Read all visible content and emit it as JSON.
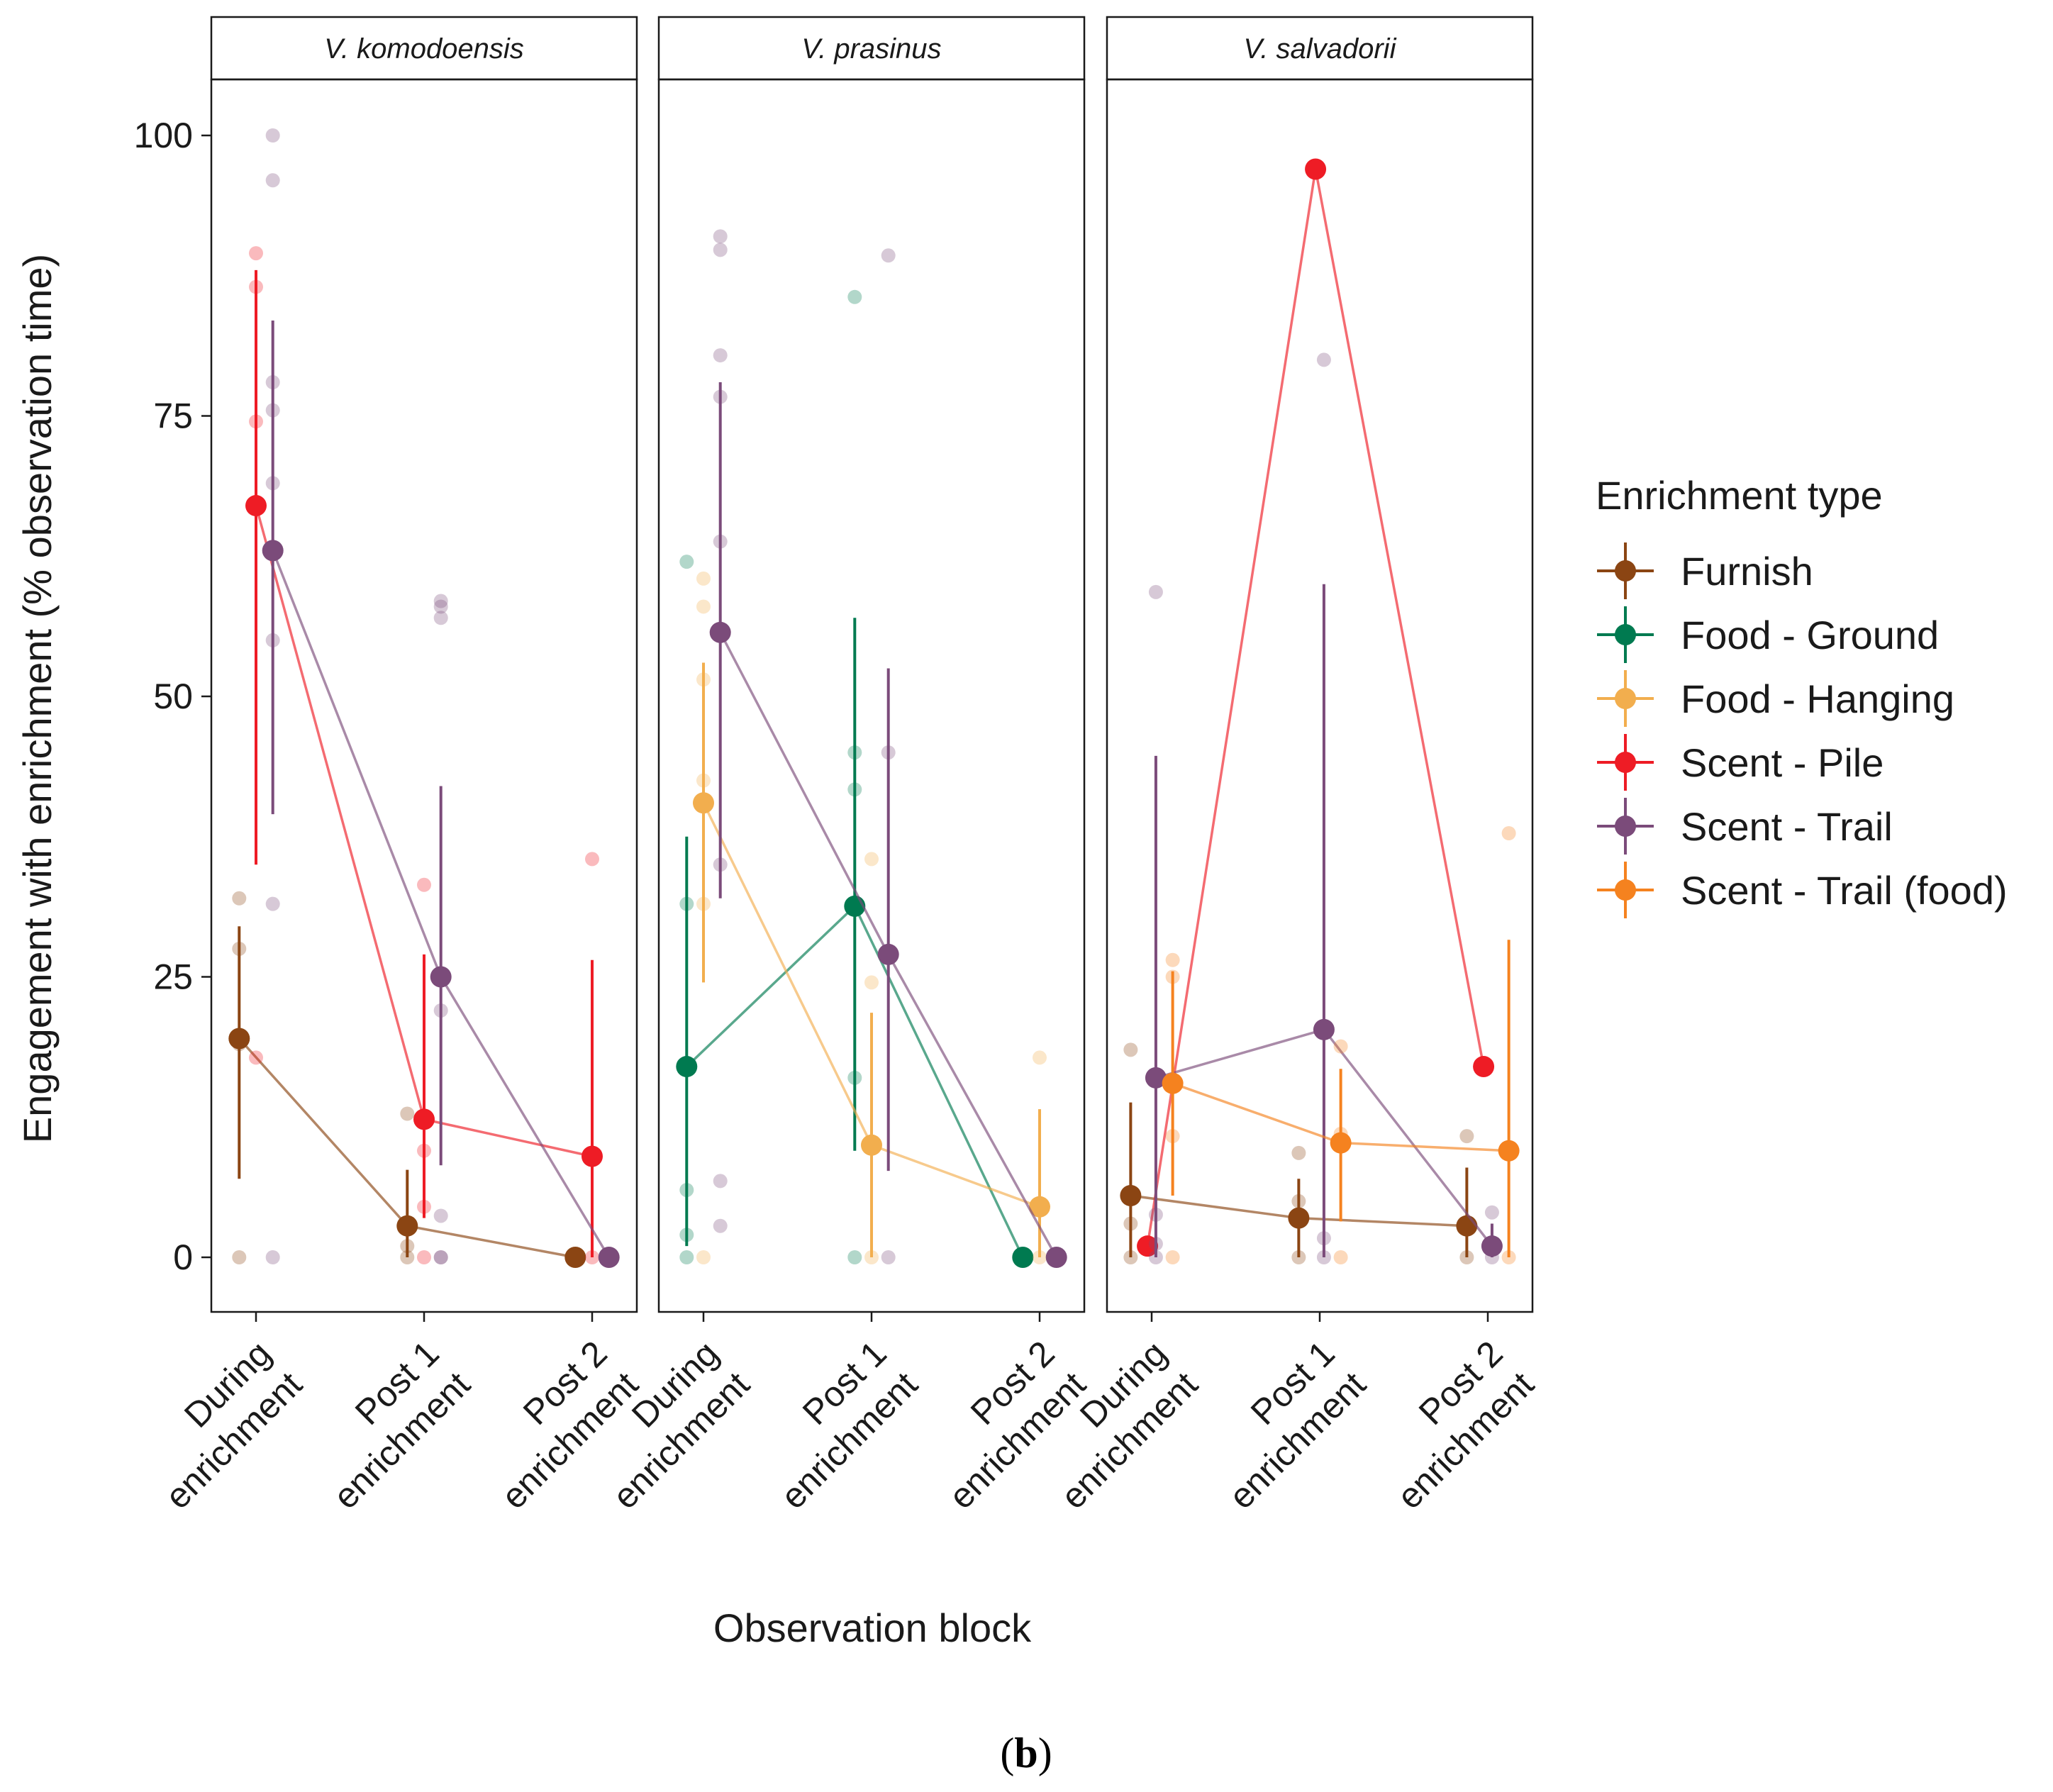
{
  "chart_data": {
    "type": "scatter",
    "ylabel": "Engagement with enrichment (% observation time)",
    "xlabel": "Observation block",
    "ylim": [
      -5,
      105
    ],
    "yticks": [
      0,
      25,
      50,
      75,
      100
    ],
    "categories": [
      [
        "During",
        "enrichment"
      ],
      [
        "Post 1",
        "enrichment"
      ],
      [
        "Post 2",
        "enrichment"
      ]
    ],
    "legend_title": "Enrichment type",
    "legend_position": "right",
    "grid": false,
    "caption": "(b)",
    "series_colors": {
      "Furnish": "#8B4513",
      "Food - Ground": "#007A50",
      "Food - Hanging": "#F2AE4E",
      "Scent - Pile": "#EE1C25",
      "Scent - Trail": "#7B4B7A",
      "Scent - Trail (food)": "#F5821F"
    },
    "series_names": [
      "Furnish",
      "Food - Ground",
      "Food - Hanging",
      "Scent - Pile",
      "Scent - Trail",
      "Scent - Trail (food)"
    ],
    "facets": [
      {
        "title": "V. komodoensis",
        "series": [
          {
            "name": "Furnish",
            "offset": -0.2,
            "means": [
              19.5,
              2.8,
              0
            ],
            "lower": [
              7,
              0,
              0
            ],
            "upper": [
              29.5,
              7.8,
              0
            ],
            "raw": [
              [
                32,
                27.5,
                19,
                0
              ],
              [
                12.8,
                1,
                0
              ],
              [
                0
              ]
            ]
          },
          {
            "name": "Scent - Pile",
            "offset": 0,
            "means": [
              67,
              12.3,
              9
            ],
            "lower": [
              35,
              3.5,
              0
            ],
            "upper": [
              88,
              27,
              26.5
            ],
            "raw": [
              [
                89.5,
                86.5,
                74.5,
                17.8
              ],
              [
                33.2,
                9.5,
                4.5,
                0
              ],
              [
                35.5,
                0
              ]
            ]
          },
          {
            "name": "Scent - Trail",
            "offset": 0.2,
            "means": [
              63,
              25,
              0
            ],
            "lower": [
              39.5,
              8.2,
              0
            ],
            "upper": [
              83.5,
              42,
              0
            ],
            "raw": [
              [
                100,
                96,
                78,
                75.5,
                69,
                55,
                31.5,
                0
              ],
              [
                58.5,
                58,
                57,
                22,
                3.7,
                0,
                0
              ],
              [
                0
              ]
            ]
          }
        ]
      },
      {
        "title": "V. prasinus",
        "series": [
          {
            "name": "Food - Ground",
            "offset": -0.2,
            "means": [
              17,
              31.3,
              0
            ],
            "lower": [
              1,
              9.5,
              0
            ],
            "upper": [
              37.5,
              57,
              0
            ],
            "raw": [
              [
                62,
                31.5,
                6,
                2,
                0
              ],
              [
                85.6,
                45,
                41.7,
                16,
                0
              ],
              [
                0
              ]
            ]
          },
          {
            "name": "Food - Hanging",
            "offset": 0,
            "means": [
              40.5,
              10,
              4.5
            ],
            "lower": [
              24.5,
              0,
              0
            ],
            "upper": [
              53,
              21.8,
              13.2
            ],
            "raw": [
              [
                60.5,
                58,
                51.5,
                42.5,
                31.5,
                0
              ],
              [
                35.5,
                24.5,
                0
              ],
              [
                17.8,
                0
              ]
            ]
          },
          {
            "name": "Scent - Trail",
            "offset": 0.2,
            "means": [
              55.7,
              27,
              0
            ],
            "lower": [
              32,
              7.7,
              0
            ],
            "upper": [
              78,
              52.5,
              0
            ],
            "raw": [
              [
                91,
                89.8,
                80.4,
                76.7,
                63.8,
                35,
                6.8,
                2.8
              ],
              [
                89.3,
                45,
                0
              ],
              [
                0
              ]
            ]
          }
        ]
      },
      {
        "title": "V. salvadorii",
        "series": [
          {
            "name": "Furnish",
            "offset": -0.25,
            "means": [
              5.5,
              3.5,
              2.8
            ],
            "lower": [
              0,
              0,
              0
            ],
            "upper": [
              13.8,
              7,
              8
            ],
            "raw": [
              [
                18.5,
                3,
                0
              ],
              [
                9.3,
                5,
                0
              ],
              [
                10.8,
                0
              ]
            ]
          },
          {
            "name": "Scent - Pile",
            "offset": -0.05,
            "means": [
              1,
              97,
              17
            ],
            "lower": [
              1,
              97,
              17
            ],
            "upper": [
              1,
              97,
              17
            ],
            "raw": [
              [
                1
              ],
              [
                97
              ],
              [
                17
              ]
            ]
          },
          {
            "name": "Scent - Trail",
            "offset": 0.05,
            "means": [
              16,
              20.3,
              1
            ],
            "lower": [
              0,
              0,
              0
            ],
            "upper": [
              44.7,
              60,
              3
            ],
            "raw": [
              [
                59.3,
                3.8,
                1.2,
                0
              ],
              [
                80,
                1.7,
                0
              ],
              [
                4,
                1,
                0
              ]
            ]
          },
          {
            "name": "Scent - Trail (food)",
            "offset": 0.25,
            "means": [
              15.5,
              10.2,
              9.5
            ],
            "lower": [
              5.5,
              3.2,
              0
            ],
            "upper": [
              25.5,
              16.8,
              28.3
            ],
            "raw": [
              [
                26.5,
                25,
                10.8,
                0
              ],
              [
                18.8,
                11,
                0
              ],
              [
                37.8,
                0
              ]
            ]
          }
        ]
      }
    ]
  }
}
